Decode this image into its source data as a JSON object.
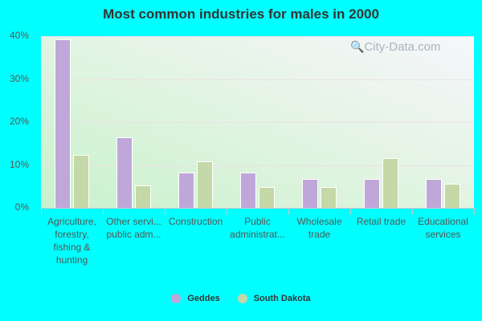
{
  "chart_data": {
    "type": "bar",
    "title": "Most common industries for males in 2000",
    "xlabel": "",
    "ylabel": "",
    "ylim": [
      0,
      40
    ],
    "yticks": [
      "0%",
      "10%",
      "20%",
      "30%",
      "40%"
    ],
    "grid": true,
    "legend_position": "bottom",
    "categories": [
      "Agriculture, forestry, fishing & hunting",
      "Other servi... public adm...",
      "Construction",
      "Public administrat...",
      "Wholesale trade",
      "Retail trade",
      "Educational services"
    ],
    "series": [
      {
        "name": "Geddes",
        "color": "#bfa8d9",
        "values": [
          39.2,
          16.4,
          8.3,
          8.3,
          6.7,
          6.7,
          6.7
        ]
      },
      {
        "name": "South Dakota",
        "color": "#c4d8a8",
        "values": [
          12.4,
          5.3,
          10.9,
          4.9,
          4.9,
          11.5,
          5.7
        ]
      }
    ]
  },
  "labels": {
    "title": "Most common industries for males in 2000",
    "x_display": [
      "Agriculture,\nforestry,\nfishing &\nhunting",
      "Other servi...\npublic adm...",
      "Construction",
      "Public\nadministrat...",
      "Wholesale\ntrade",
      "Retail trade",
      "Educational\nservices"
    ],
    "watermark": "City-Data.com",
    "legend": [
      "Geddes",
      "South Dakota"
    ]
  }
}
